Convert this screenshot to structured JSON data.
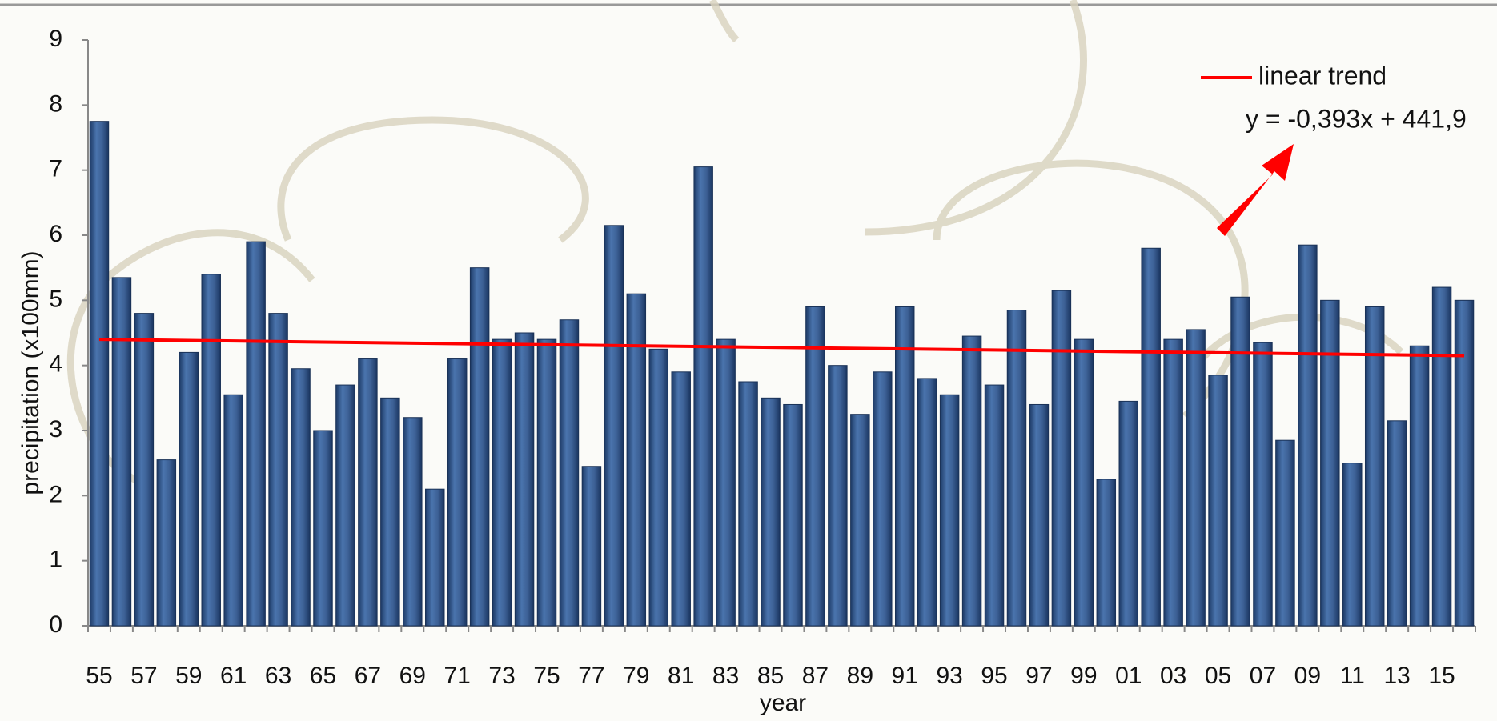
{
  "chart_data": {
    "type": "bar",
    "y_label": "precipitation  (x100mm)",
    "x_label": "year",
    "categories": [
      "55",
      null,
      "57",
      null,
      "59",
      null,
      "61",
      null,
      "63",
      null,
      "65",
      null,
      "67",
      null,
      "69",
      null,
      "71",
      null,
      "73",
      null,
      "75",
      null,
      "77",
      null,
      "79",
      null,
      "81",
      null,
      "83",
      null,
      "85",
      null,
      "87",
      null,
      "89",
      null,
      "91",
      null,
      "93",
      null,
      "95",
      null,
      "97",
      null,
      "99",
      null,
      "01",
      null,
      "03",
      null,
      "05",
      null,
      "07",
      null,
      "09",
      null,
      "11",
      null,
      "13",
      null,
      "15",
      null
    ],
    "values": [
      7.75,
      5.35,
      4.8,
      2.55,
      4.2,
      5.4,
      3.55,
      5.9,
      4.8,
      3.95,
      3.0,
      3.7,
      4.1,
      3.5,
      3.2,
      2.1,
      4.1,
      5.5,
      4.4,
      4.5,
      4.4,
      4.7,
      2.45,
      6.15,
      5.1,
      4.25,
      3.9,
      7.05,
      4.4,
      3.75,
      3.5,
      3.4,
      4.9,
      4.0,
      3.25,
      3.9,
      4.9,
      3.8,
      3.55,
      4.45,
      3.7,
      4.85,
      3.4,
      5.15,
      4.4,
      2.25,
      3.45,
      5.8,
      4.4,
      4.55,
      3.85,
      5.05,
      4.35,
      2.85,
      5.85,
      5.0,
      2.5,
      4.9,
      3.15,
      4.3,
      5.2,
      5.0
    ],
    "color": "#3d6196",
    "ylim": [
      0,
      9
    ],
    "yticks": [
      0,
      1,
      2,
      3,
      4,
      5,
      6,
      7,
      8,
      9
    ],
    "trend": {
      "name": "linear trend",
      "equation": "y = -0,393x + 441,9",
      "color": "#ff0000",
      "values": [
        4.4,
        4.15
      ]
    }
  }
}
